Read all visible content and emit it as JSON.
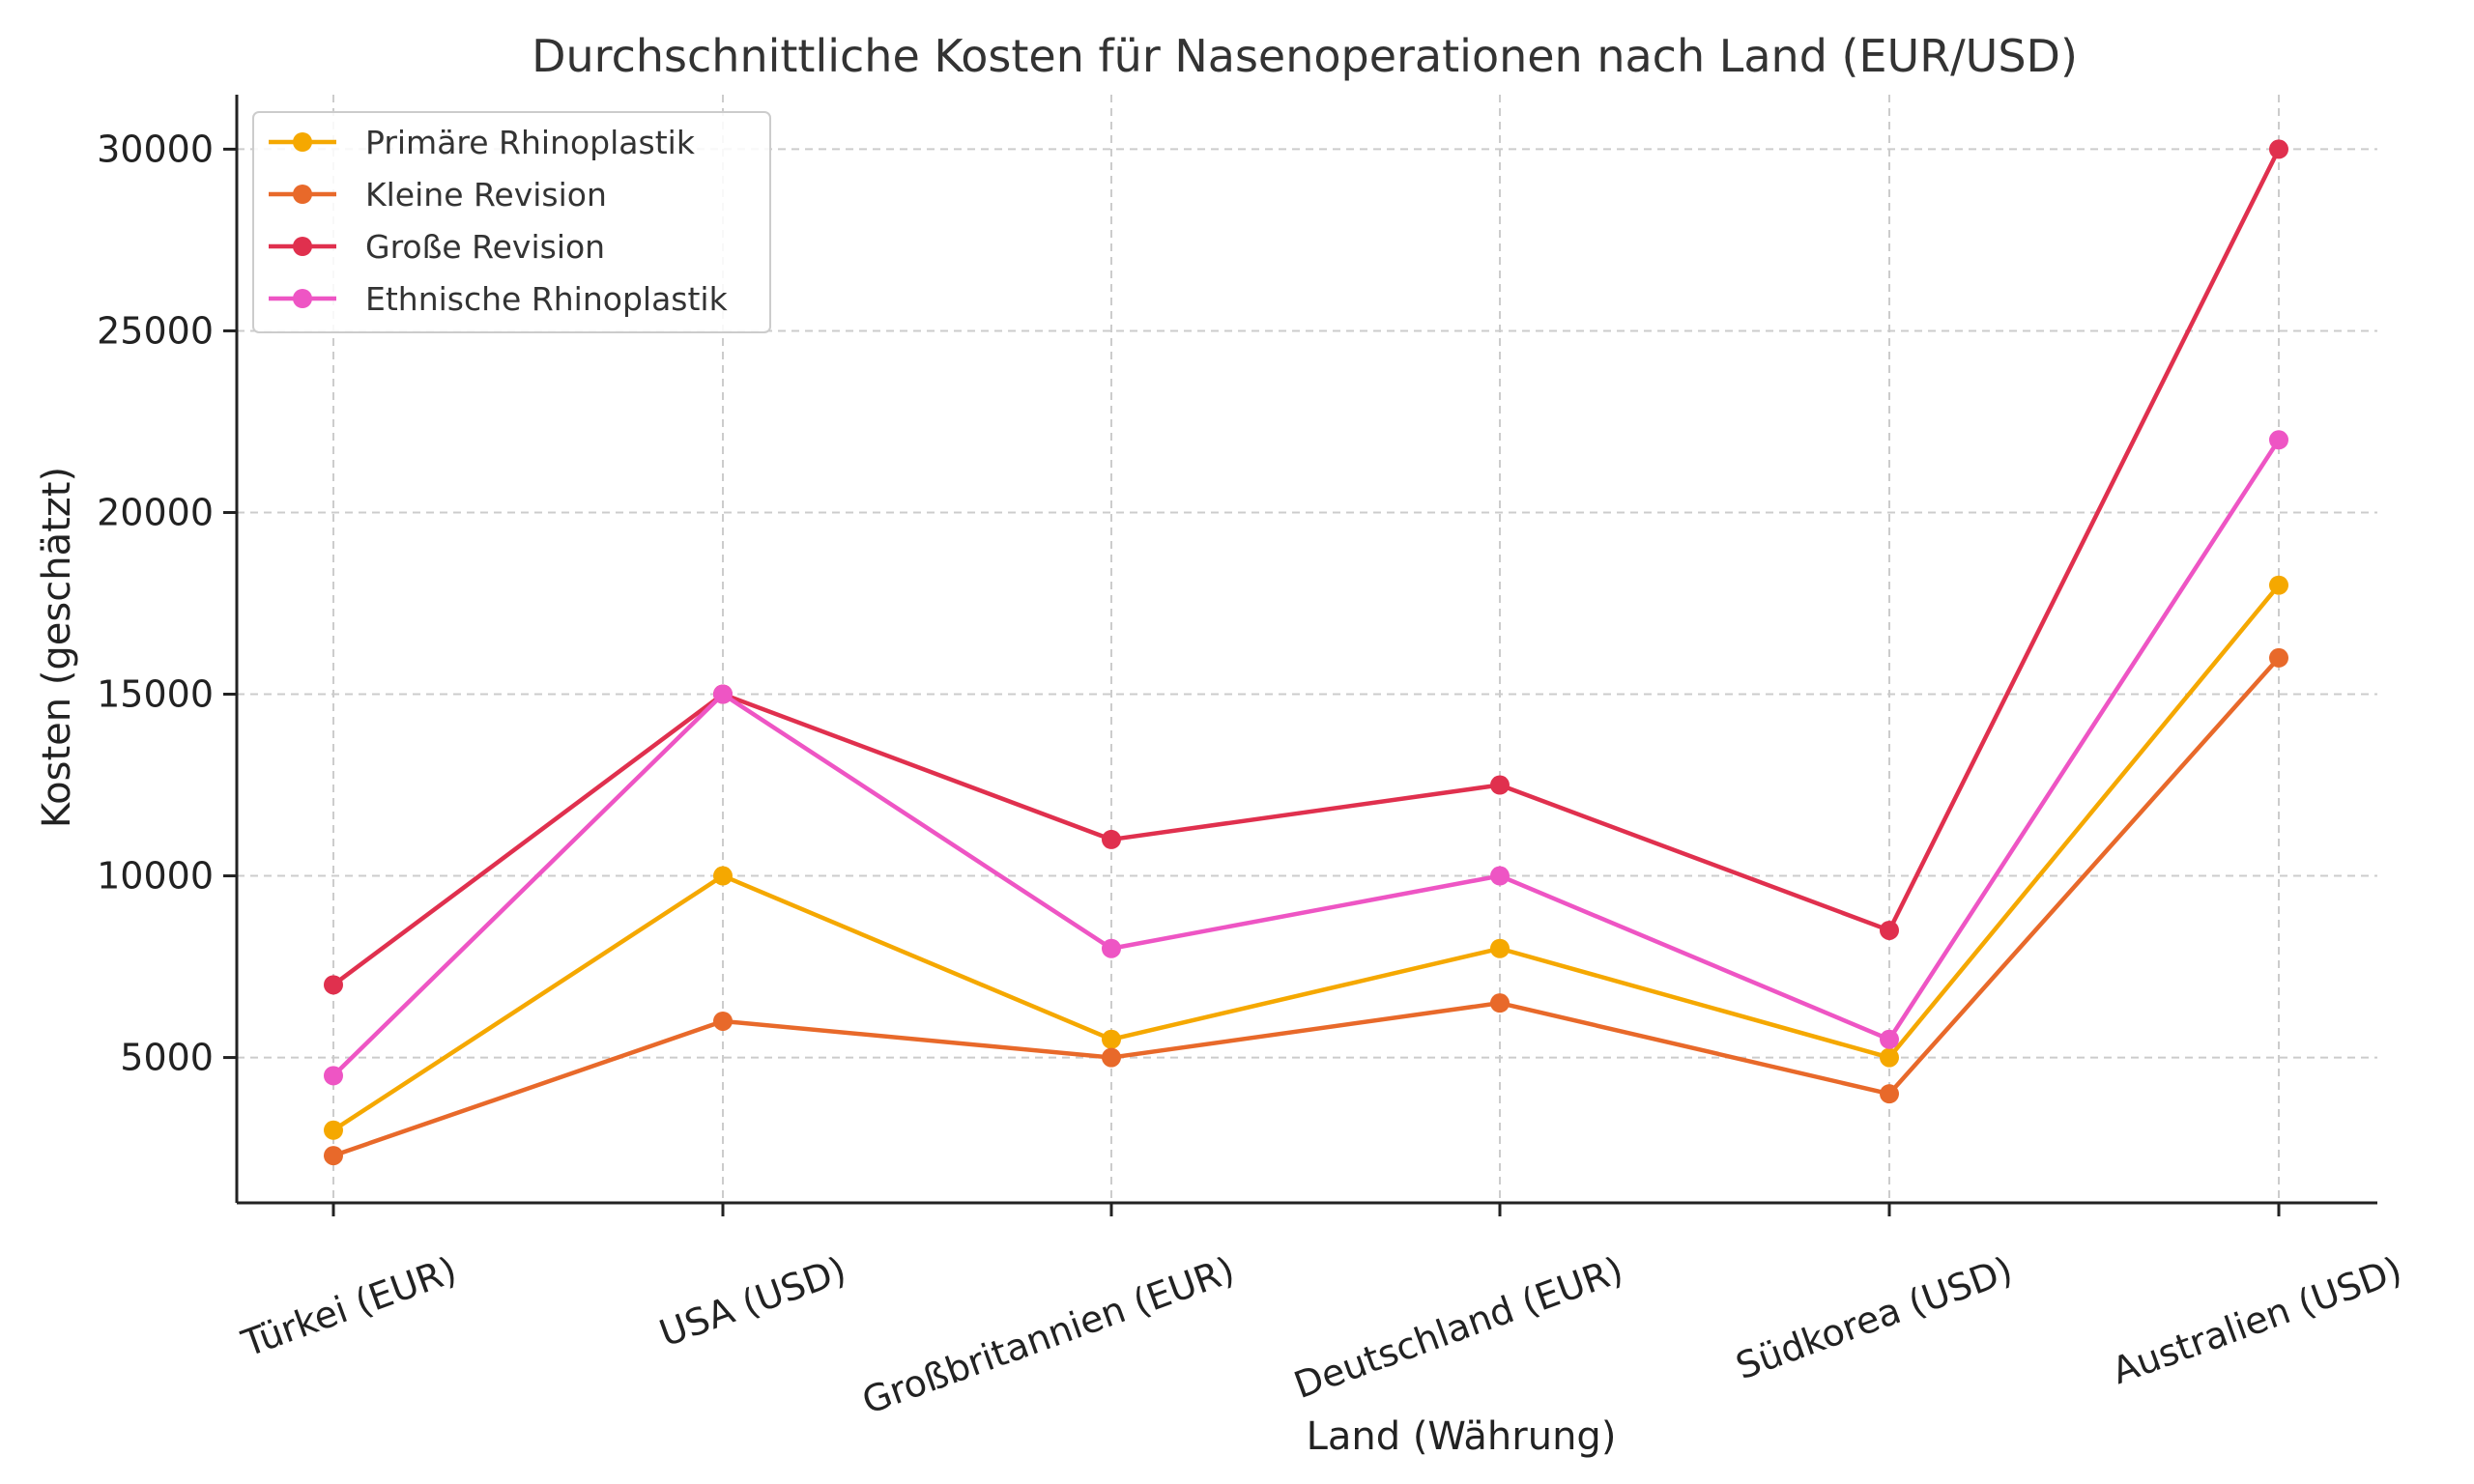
{
  "chart_data": {
    "type": "line",
    "title": "Durchschnittliche Kosten für Nasenoperationen nach Land (EUR/USD)",
    "xlabel": "Land (Währung)",
    "ylabel": "Kosten (geschätzt)",
    "categories": [
      "Türkei (EUR)",
      "USA (USD)",
      "Großbritannien (EUR)",
      "Deutschland (EUR)",
      "Südkorea (USD)",
      "Australien (USD)"
    ],
    "yticks": [
      5000,
      10000,
      15000,
      20000,
      25000,
      30000
    ],
    "ylim": [
      1000,
      31500
    ],
    "grid": true,
    "legend_position": "top-left",
    "series": [
      {
        "name": "Primäre Rhinoplastik",
        "color": "#F5A800",
        "values": [
          3000,
          10000,
          5500,
          8000,
          5000,
          18000
        ]
      },
      {
        "name": "Kleine Revision",
        "color": "#E8692A",
        "values": [
          2300,
          6000,
          5000,
          6500,
          4000,
          16000
        ]
      },
      {
        "name": "Große Revision",
        "color": "#E0304E",
        "values": [
          7000,
          15000,
          11000,
          12500,
          8500,
          30000
        ]
      },
      {
        "name": "Ethnische Rhinoplastik",
        "color": "#EE55C4",
        "values": [
          4500,
          15000,
          8000,
          10000,
          5500,
          22000
        ]
      }
    ]
  }
}
